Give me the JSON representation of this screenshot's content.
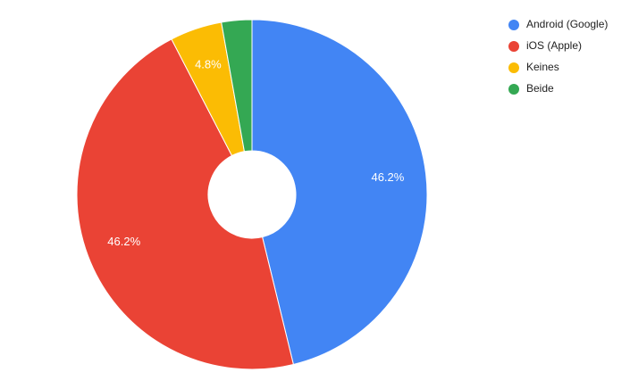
{
  "chart_data": {
    "type": "donut",
    "categories": [
      "Android (Google)",
      "iOS (Apple)",
      "Keines",
      "Beide"
    ],
    "values": [
      46.2,
      46.2,
      4.8,
      2.8
    ],
    "value_labels": [
      "46.2%",
      "46.2%",
      "4.8%",
      null
    ],
    "colors": [
      "#4285f4",
      "#ea4335",
      "#fbbc04",
      "#34a853"
    ],
    "legend": "right"
  }
}
